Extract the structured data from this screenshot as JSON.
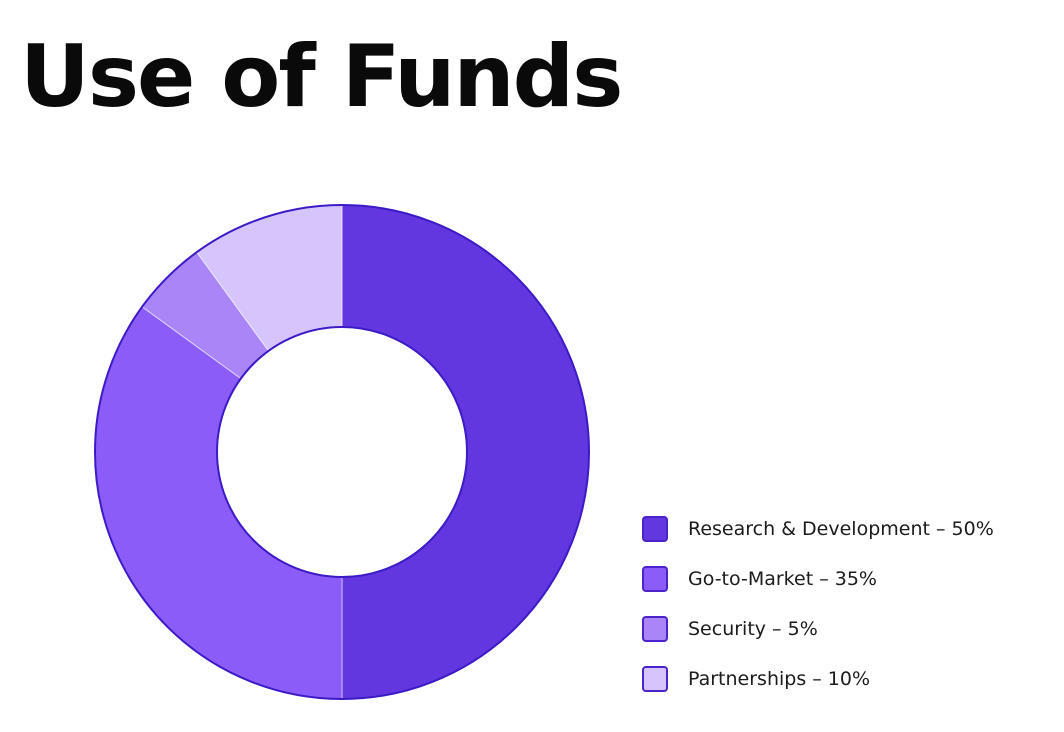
{
  "title": "Use of Funds",
  "chart_data": {
    "type": "pie",
    "variant": "donut",
    "title": "Use of Funds",
    "unit": "%",
    "slices": [
      {
        "label": "Research & Development",
        "value": 50,
        "color": "#6237e0",
        "legend_text": "Research & Development – 50%"
      },
      {
        "label": "Go-to-Market",
        "value": 35,
        "color": "#8b5cf7",
        "legend_text": "Go-to-Market – 35%"
      },
      {
        "label": "Security",
        "value": 5,
        "color": "#a985f7",
        "legend_text": "Security – 5%"
      },
      {
        "label": "Partnerships",
        "value": 10,
        "color": "#d5c5fc",
        "legend_text": "Partnerships – 10%"
      }
    ],
    "start_angle": "12 o'clock",
    "direction": "clockwise",
    "legend_position": "bottom-right",
    "outline_color": "#3c1bc6"
  }
}
